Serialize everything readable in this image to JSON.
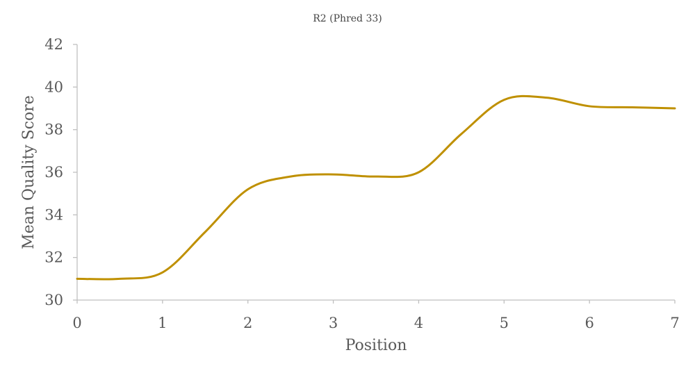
{
  "chart_data": {
    "type": "line",
    "title": "R2 (Phred 33)",
    "xlabel": "Position",
    "ylabel": "Mean Quality Score",
    "xlim": [
      0,
      7
    ],
    "ylim": [
      30,
      42
    ],
    "x_ticks": [
      "0",
      "1",
      "2",
      "3",
      "4",
      "5",
      "6",
      "7"
    ],
    "y_ticks": [
      "30",
      "32",
      "34",
      "36",
      "38",
      "40",
      "42"
    ],
    "smooth": true,
    "grid": false,
    "legend": "none",
    "series": [
      {
        "color": "#bf9000",
        "x": [
          0,
          0.5,
          1,
          1.5,
          2,
          2.5,
          3,
          3.5,
          4,
          4.5,
          5,
          5.5,
          6,
          6.5,
          7
        ],
        "y": [
          31.0,
          31.0,
          31.3,
          33.2,
          35.2,
          35.8,
          35.9,
          35.8,
          36.0,
          37.8,
          39.4,
          39.5,
          39.1,
          39.05,
          39.0
        ]
      }
    ]
  }
}
